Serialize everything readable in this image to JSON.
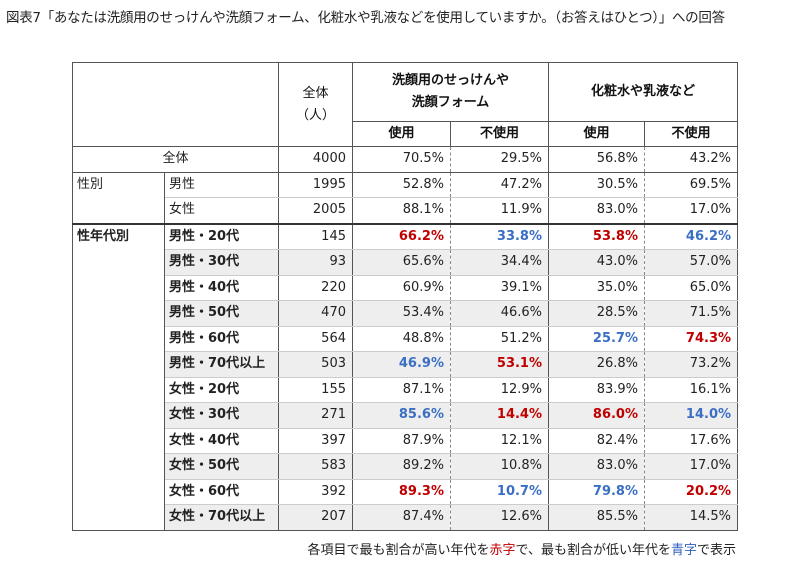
{
  "title": "図表7「あなたは洗顔用のせっけんや洗顔フォーム、化粧水や乳液などを使用していますか。（お答えはひとつ）」への回答",
  "header": {
    "total_line1": "全体",
    "total_line2": "（人）",
    "group1_line1": "洗顔用のせっけんや",
    "group1_line2": "洗顔フォーム",
    "group2": "化粧水や乳液など",
    "use": "使用",
    "not_use": "不使用"
  },
  "rows": {
    "all": {
      "label": "全体",
      "n": "4000",
      "v": [
        "70.5%",
        "29.5%",
        "56.8%",
        "43.2%"
      ]
    },
    "gender": {
      "group": "性別",
      "items": [
        {
          "label": "男性",
          "n": "1995",
          "v": [
            "52.8%",
            "47.2%",
            "30.5%",
            "69.5%"
          ]
        },
        {
          "label": "女性",
          "n": "2005",
          "v": [
            "88.1%",
            "11.9%",
            "83.0%",
            "17.0%"
          ]
        }
      ]
    },
    "agegender": {
      "group": "性年代別",
      "items": [
        {
          "label": "男性・20代",
          "n": "145",
          "v": [
            "66.2%",
            "33.8%",
            "53.8%",
            "46.2%"
          ]
        },
        {
          "label": "男性・30代",
          "n": "93",
          "v": [
            "65.6%",
            "34.4%",
            "43.0%",
            "57.0%"
          ]
        },
        {
          "label": "男性・40代",
          "n": "220",
          "v": [
            "60.9%",
            "39.1%",
            "35.0%",
            "65.0%"
          ]
        },
        {
          "label": "男性・50代",
          "n": "470",
          "v": [
            "53.4%",
            "46.6%",
            "28.5%",
            "71.5%"
          ]
        },
        {
          "label": "男性・60代",
          "n": "564",
          "v": [
            "48.8%",
            "51.2%",
            "25.7%",
            "74.3%"
          ]
        },
        {
          "label": "男性・70代以上",
          "n": "503",
          "v": [
            "46.9%",
            "53.1%",
            "26.8%",
            "73.2%"
          ]
        },
        {
          "label": "女性・20代",
          "n": "155",
          "v": [
            "87.1%",
            "12.9%",
            "83.9%",
            "16.1%"
          ]
        },
        {
          "label": "女性・30代",
          "n": "271",
          "v": [
            "85.6%",
            "14.4%",
            "86.0%",
            "14.0%"
          ]
        },
        {
          "label": "女性・40代",
          "n": "397",
          "v": [
            "87.9%",
            "12.1%",
            "82.4%",
            "17.6%"
          ]
        },
        {
          "label": "女性・50代",
          "n": "583",
          "v": [
            "89.2%",
            "10.8%",
            "83.0%",
            "17.0%"
          ]
        },
        {
          "label": "女性・60代",
          "n": "392",
          "v": [
            "89.3%",
            "10.7%",
            "79.8%",
            "20.2%"
          ]
        },
        {
          "label": "女性・70代以上",
          "n": "207",
          "v": [
            "87.4%",
            "12.6%",
            "85.5%",
            "14.5%"
          ]
        }
      ]
    }
  },
  "highlights": {
    "red": [
      "m20-0",
      "m70-1",
      "m20-2",
      "m60-3",
      "f60-0",
      "f30-1",
      "f30-2",
      "f60-3"
    ],
    "blue": [
      "m70-0",
      "m20-1",
      "m60-2",
      "m20-3",
      "f30-0",
      "f60-1",
      "f60-2",
      "f30-3"
    ]
  },
  "footnote": {
    "part1": "各項目で最も割合が高い年代を",
    "red_word": "赤字",
    "part2": "で、最も割合が低い年代を",
    "blue_word": "青字",
    "part3": "で表示"
  }
}
